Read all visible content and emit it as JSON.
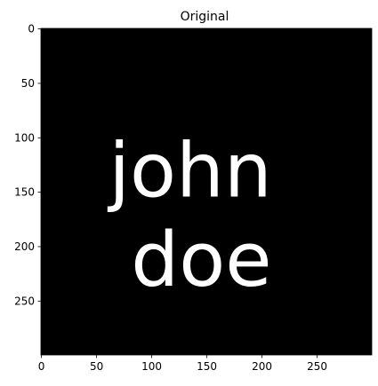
{
  "chart_data": {
    "type": "image",
    "title": "Original",
    "xlabel": "",
    "ylabel": "",
    "image_extent": {
      "x": [
        0,
        299
      ],
      "y": [
        0,
        299
      ]
    },
    "y_axis_inverted": true,
    "x_ticks": [
      0,
      50,
      100,
      150,
      200,
      250
    ],
    "y_ticks": [
      0,
      50,
      100,
      150,
      200,
      250
    ],
    "grid": false,
    "background_color": "#000000",
    "text_color": "#ffffff",
    "image_text_lines": [
      {
        "text": "john",
        "x_center": 135,
        "baseline_y": 154
      },
      {
        "text": "doe",
        "x_center": 145,
        "baseline_y": 236
      }
    ]
  }
}
